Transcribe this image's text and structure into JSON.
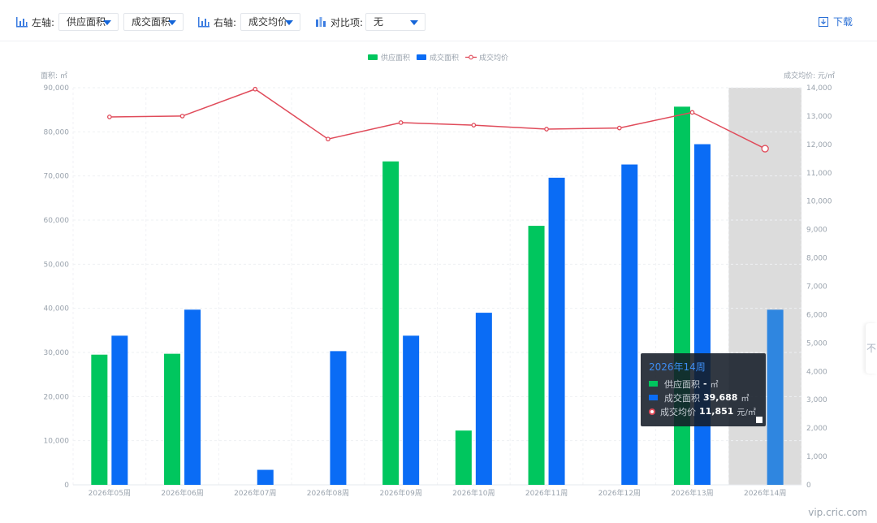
{
  "toolbar": {
    "left_axis_label": "左轴:",
    "left_select_1": "供应面积",
    "left_select_2": "成交面积",
    "right_axis_label": "右轴:",
    "right_select": "成交均价",
    "compare_label": "对比项:",
    "compare_select": "无",
    "download_label": "下载"
  },
  "side_tab_text": "不",
  "watermark": "vip.cric.com",
  "tooltip": {
    "title": "2026年14周",
    "rows": [
      {
        "label": "供应面积",
        "value": "-",
        "unit": "㎡"
      },
      {
        "label": "成交面积",
        "value": "39,688",
        "unit": "㎡"
      },
      {
        "label": "成交均价",
        "value": "11,851",
        "unit": "元/㎡"
      }
    ]
  },
  "chart_data": {
    "type": "bar",
    "categories": [
      "2026年05周",
      "2026年06周",
      "2026年07周",
      "2026年08周",
      "2026年09周",
      "2026年10周",
      "2026年11周",
      "2026年12周",
      "2026年13周",
      "2026年14周"
    ],
    "series": [
      {
        "name": "供应面积",
        "type": "bar",
        "axis": "left",
        "values": [
          29500,
          29700,
          null,
          null,
          73300,
          12300,
          58700,
          null,
          85700,
          null
        ]
      },
      {
        "name": "成交面积",
        "type": "bar",
        "axis": "left",
        "values": [
          33800,
          39700,
          3400,
          30300,
          33800,
          39000,
          69600,
          72600,
          77200,
          39688
        ]
      },
      {
        "name": "成交均价",
        "type": "line",
        "axis": "right",
        "values": [
          12970,
          13000,
          13950,
          12190,
          12770,
          12680,
          12540,
          12580,
          13130,
          11851
        ]
      }
    ],
    "y_left": {
      "label": "面积: ㎡",
      "min": 0,
      "max": 90000,
      "ticks": [
        "0",
        "10,000",
        "20,000",
        "30,000",
        "40,000",
        "50,000",
        "60,000",
        "70,000",
        "80,000",
        "90,000"
      ]
    },
    "y_right": {
      "label": "成交均价: 元/㎡",
      "min": 0,
      "max": 14000,
      "ticks": [
        "0",
        "1,000",
        "2,000",
        "3,000",
        "4,000",
        "5,000",
        "6,000",
        "7,000",
        "8,000",
        "9,000",
        "10,000",
        "11,000",
        "12,000",
        "13,000",
        "14,000"
      ]
    },
    "highlighted_category_index": 9,
    "legend_position": "top-center",
    "grid": true,
    "colors": {
      "supply": "#00c65e",
      "deal": "#0a6cf5",
      "deal_highlight": "#2f86e0",
      "price": "#e04b5a",
      "highlight_band": "#dcdcdc"
    }
  }
}
